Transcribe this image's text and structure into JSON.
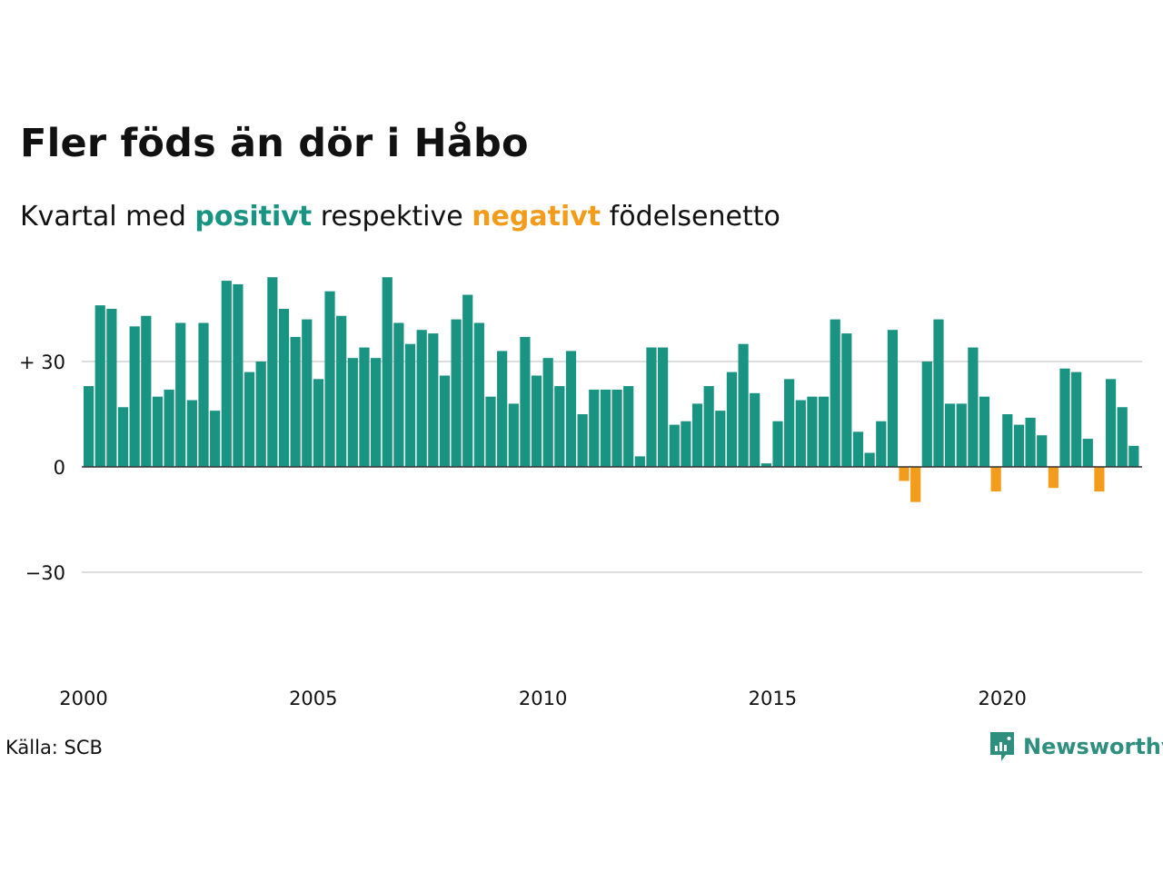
{
  "title": "Fler föds än dör i Håbo",
  "subtitle": {
    "prefix": "Kvartal med ",
    "positive": "positivt",
    "middle": " respektive ",
    "negative": "negativt",
    "suffix": " födelsenetto"
  },
  "source": "Källa: SCB",
  "brand": {
    "name": "Newsworthy",
    "icon": "newsworthy-logo-icon"
  },
  "colors": {
    "positive": "#1a9482",
    "negative": "#f39c1c",
    "grid": "#dddddd",
    "axis": "#333333"
  },
  "chart_data": {
    "type": "bar",
    "x_unit": "quarter",
    "x_start": "2000",
    "x_tick_labels": [
      "2000",
      "2005",
      "2010",
      "2015",
      "2020"
    ],
    "y_tick_labels": [
      "+ 30",
      "0",
      "−30"
    ],
    "y_ticks": [
      30,
      0,
      -30
    ],
    "ylim": [
      -50,
      55
    ],
    "grid": true,
    "values": [
      23,
      46,
      45,
      17,
      40,
      43,
      20,
      22,
      41,
      19,
      41,
      16,
      53,
      52,
      27,
      30,
      54,
      45,
      37,
      42,
      25,
      50,
      43,
      31,
      34,
      31,
      54,
      41,
      35,
      39,
      38,
      26,
      42,
      49,
      41,
      20,
      33,
      18,
      37,
      26,
      31,
      23,
      33,
      15,
      22,
      22,
      22,
      23,
      3,
      34,
      34,
      12,
      13,
      18,
      23,
      16,
      27,
      35,
      21,
      1,
      13,
      25,
      19,
      20,
      20,
      42,
      38,
      10,
      4,
      13,
      39,
      -4,
      -10,
      30,
      42,
      18,
      18,
      34,
      20,
      -7,
      15,
      12,
      14,
      9,
      -6,
      28,
      27,
      8,
      -7,
      25,
      17,
      6
    ]
  }
}
